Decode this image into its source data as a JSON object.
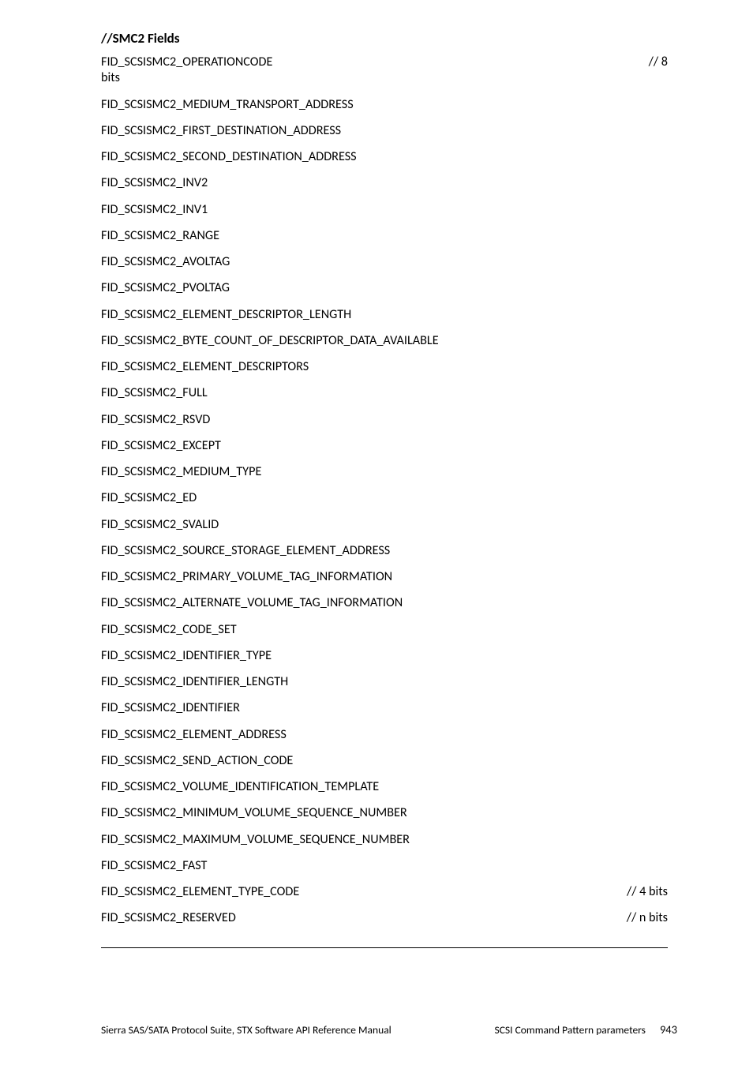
{
  "section_title": "//SMC2 Fields",
  "fields": [
    {
      "name": "FID_SCSISMC2_OPERATIONCODE\nbits",
      "comment": "// 8",
      "wrap": true
    },
    {
      "name": "FID_SCSISMC2_MEDIUM_TRANSPORT_ADDRESS",
      "comment": ""
    },
    {
      "name": "FID_SCSISMC2_FIRST_DESTINATION_ADDRESS",
      "comment": ""
    },
    {
      "name": "FID_SCSISMC2_SECOND_DESTINATION_ADDRESS",
      "comment": ""
    },
    {
      "name": "FID_SCSISMC2_INV2",
      "comment": ""
    },
    {
      "name": "FID_SCSISMC2_INV1",
      "comment": ""
    },
    {
      "name": "FID_SCSISMC2_RANGE",
      "comment": ""
    },
    {
      "name": "FID_SCSISMC2_AVOLTAG",
      "comment": ""
    },
    {
      "name": "FID_SCSISMC2_PVOLTAG",
      "comment": ""
    },
    {
      "name": "FID_SCSISMC2_ELEMENT_DESCRIPTOR_LENGTH",
      "comment": ""
    },
    {
      "name": "FID_SCSISMC2_BYTE_COUNT_OF_DESCRIPTOR_DATA_AVAILABLE",
      "comment": ""
    },
    {
      "name": "FID_SCSISMC2_ELEMENT_DESCRIPTORS",
      "comment": ""
    },
    {
      "name": "FID_SCSISMC2_FULL",
      "comment": ""
    },
    {
      "name": "FID_SCSISMC2_RSVD",
      "comment": ""
    },
    {
      "name": "FID_SCSISMC2_EXCEPT",
      "comment": ""
    },
    {
      "name": "FID_SCSISMC2_MEDIUM_TYPE",
      "comment": ""
    },
    {
      "name": "FID_SCSISMC2_ED",
      "comment": ""
    },
    {
      "name": "FID_SCSISMC2_SVALID",
      "comment": ""
    },
    {
      "name": "FID_SCSISMC2_SOURCE_STORAGE_ELEMENT_ADDRESS",
      "comment": ""
    },
    {
      "name": "FID_SCSISMC2_PRIMARY_VOLUME_TAG_INFORMATION",
      "comment": ""
    },
    {
      "name": "FID_SCSISMC2_ALTERNATE_VOLUME_TAG_INFORMATION",
      "comment": ""
    },
    {
      "name": "FID_SCSISMC2_CODE_SET",
      "comment": ""
    },
    {
      "name": "FID_SCSISMC2_IDENTIFIER_TYPE",
      "comment": ""
    },
    {
      "name": "FID_SCSISMC2_IDENTIFIER_LENGTH",
      "comment": ""
    },
    {
      "name": "FID_SCSISMC2_IDENTIFIER",
      "comment": ""
    },
    {
      "name": "FID_SCSISMC2_ELEMENT_ADDRESS",
      "comment": ""
    },
    {
      "name": "FID_SCSISMC2_SEND_ACTION_CODE",
      "comment": ""
    },
    {
      "name": "FID_SCSISMC2_VOLUME_IDENTIFICATION_TEMPLATE",
      "comment": ""
    },
    {
      "name": "FID_SCSISMC2_MINIMUM_VOLUME_SEQUENCE_NUMBER",
      "comment": ""
    },
    {
      "name": "FID_SCSISMC2_MAXIMUM_VOLUME_SEQUENCE_NUMBER",
      "comment": ""
    },
    {
      "name": "FID_SCSISMC2_FAST",
      "comment": ""
    },
    {
      "name": "FID_SCSISMC2_ELEMENT_TYPE_CODE",
      "comment": "// 4 bits"
    },
    {
      "name": "FID_SCSISMC2_RESERVED",
      "comment": "// n bits"
    }
  ],
  "footer": {
    "left": "Sierra SAS/SATA Protocol Suite, STX Software API Reference Manual",
    "right_label": "SCSI Command Pattern parameters",
    "page_number": "943"
  }
}
